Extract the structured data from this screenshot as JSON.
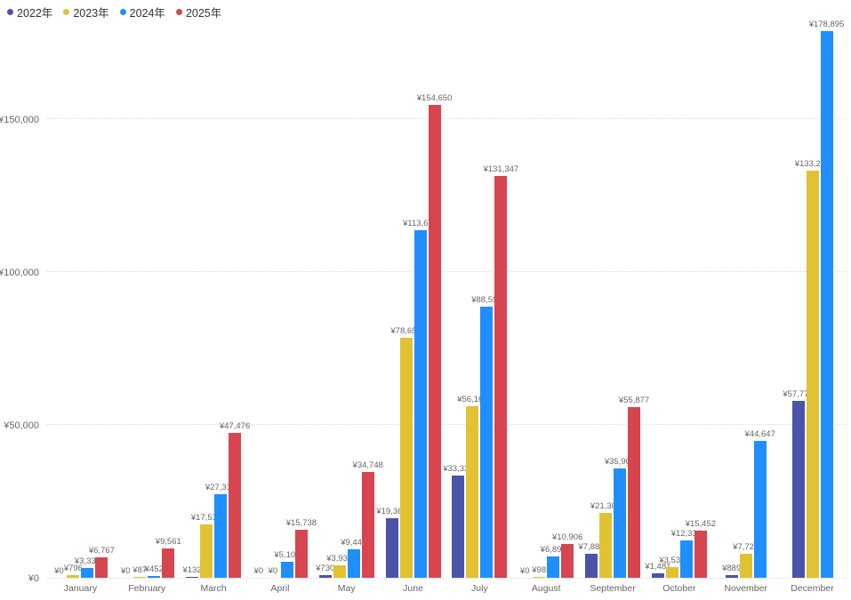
{
  "chart_data": {
    "type": "bar",
    "title": "",
    "legend_position": "top-left",
    "grid": "dotted-horizontal",
    "currency_prefix": "¥",
    "ylim": [
      0,
      180000
    ],
    "y_ticks": [
      {
        "label": "¥0",
        "value": 0
      },
      {
        "label": "¥50,000",
        "value": 50000
      },
      {
        "label": "¥100,000",
        "value": 100000
      },
      {
        "label": "¥150,000",
        "value": 150000
      }
    ],
    "categories": [
      "January",
      "February",
      "March",
      "April",
      "May",
      "June",
      "July",
      "August",
      "September",
      "October",
      "November",
      "December"
    ],
    "series": [
      {
        "name": "2022年",
        "color": "#4a54a8",
        "values": [
          0,
          0,
          132,
          0,
          730,
          19369,
          33336,
          0,
          7886,
          1481,
          889,
          57774
        ]
      },
      {
        "name": "2023年",
        "color": "#e0c233",
        "values": [
          796,
          87,
          17518,
          0,
          3939,
          78657,
          56161,
          98,
          21305,
          3533,
          7722,
          133232
        ]
      },
      {
        "name": "2024年",
        "color": "#1e8ffd",
        "values": [
          3333,
          452,
          27319,
          5100,
          9448,
          113621,
          88592,
          6890,
          35908,
          12330,
          44647,
          178895
        ]
      },
      {
        "name": "2025年",
        "color": "#d64550",
        "values": [
          6767,
          9561,
          47476,
          15738,
          34748,
          154650,
          131347,
          10906,
          55877,
          15452,
          null,
          null
        ]
      }
    ]
  }
}
